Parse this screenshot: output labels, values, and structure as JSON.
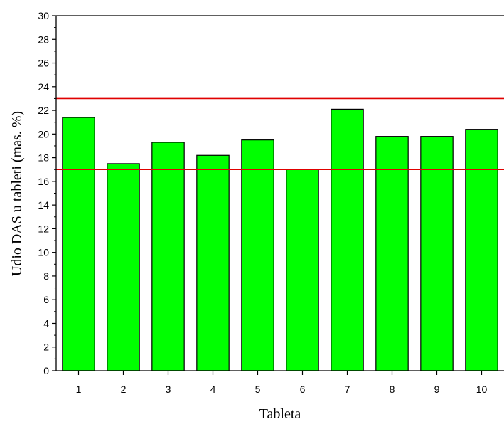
{
  "chart_data": {
    "type": "bar",
    "title": "",
    "xlabel": "Tableta",
    "ylabel": "Udio DAS u tableti (mas. %)",
    "categories": [
      "1",
      "2",
      "3",
      "4",
      "5",
      "6",
      "7",
      "8",
      "9",
      "10"
    ],
    "values": [
      21.4,
      17.5,
      19.3,
      18.2,
      19.5,
      17.0,
      22.1,
      19.8,
      19.8,
      20.4
    ],
    "ylim": [
      0,
      30
    ],
    "yticks": [
      "0",
      "2",
      "4",
      "6",
      "8",
      "10",
      "12",
      "14",
      "16",
      "18",
      "20",
      "22",
      "24",
      "26",
      "28",
      "30"
    ],
    "reference_lines": [
      {
        "y": 23,
        "color": "#e00000"
      },
      {
        "y": 17,
        "color": "#e00000"
      }
    ],
    "bar_color": "#00ff00",
    "bar_edge_color": "#000000",
    "grid": false,
    "legend": "none"
  }
}
